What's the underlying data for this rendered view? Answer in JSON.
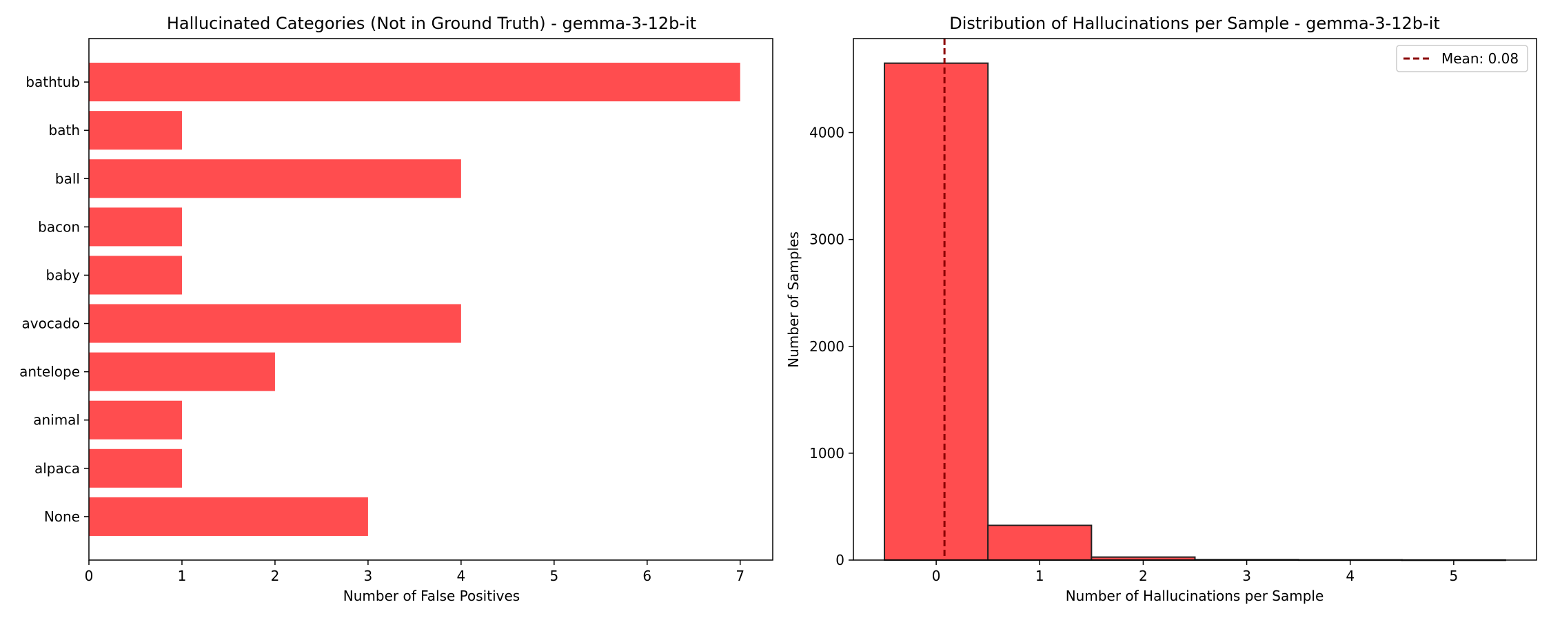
{
  "chart_data": [
    {
      "type": "bar",
      "orientation": "horizontal",
      "title": "Hallucinated Categories (Not in Ground Truth) - gemma-3-12b-it",
      "xlabel": "Number of False Positives",
      "ylabel": "",
      "categories": [
        "bathtub",
        "bath",
        "ball",
        "bacon",
        "baby",
        "avocado",
        "antelope",
        "animal",
        "alpaca",
        "None"
      ],
      "values": [
        7,
        1,
        4,
        1,
        1,
        4,
        2,
        1,
        1,
        3
      ],
      "xlim": [
        0,
        7.35
      ],
      "xticks": [
        "0",
        "1",
        "2",
        "3",
        "4",
        "5",
        "6",
        "7"
      ],
      "grid": false,
      "bar_color": "#ff4d4f"
    },
    {
      "type": "histogram",
      "title": "Distribution of Hallucinations per Sample - gemma-3-12b-it",
      "xlabel": "Number of Hallucinations per Sample",
      "ylabel": "Number of Samples",
      "bins": [
        {
          "x0": -0.5,
          "x1": 0.5,
          "count": 4650
        },
        {
          "x0": 0.5,
          "x1": 1.5,
          "count": 325
        },
        {
          "x0": 1.5,
          "x1": 2.5,
          "count": 28
        },
        {
          "x0": 2.5,
          "x1": 3.5,
          "count": 4
        },
        {
          "x0": 3.5,
          "x1": 4.5,
          "count": 2
        },
        {
          "x0": 4.5,
          "x1": 5.5,
          "count": 1
        }
      ],
      "xlim": [
        -0.8,
        5.8
      ],
      "ylim": [
        0,
        4880
      ],
      "xticks": [
        "0",
        "1",
        "2",
        "3",
        "4",
        "5"
      ],
      "yticks": [
        "0",
        "1000",
        "2000",
        "3000",
        "4000"
      ],
      "mean_line": {
        "value": 0.08,
        "label": "Mean: 0.08",
        "color": "#8b0000"
      },
      "legend_position": "upper right",
      "grid": false,
      "bar_color": "#ff4d4f",
      "edge_color": "#222222"
    }
  ]
}
